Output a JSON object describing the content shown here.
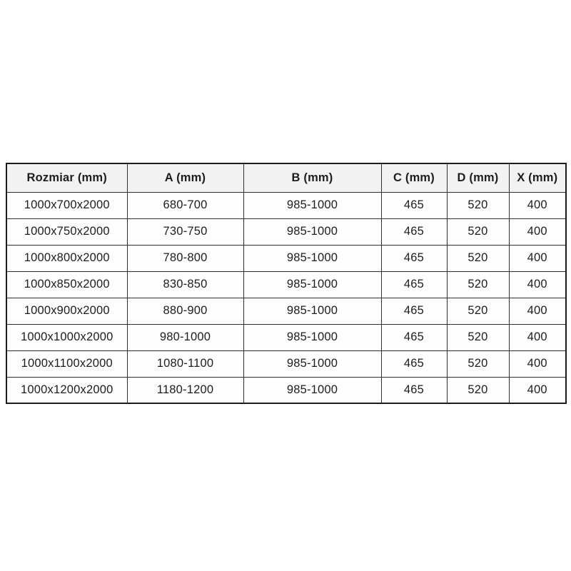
{
  "table": {
    "headers": [
      "Rozmiar (mm)",
      "A (mm)",
      "B (mm)",
      "C (mm)",
      "D (mm)",
      "X (mm)"
    ],
    "rows": [
      [
        "1000x700x2000",
        "680-700",
        "985-1000",
        "465",
        "520",
        "400"
      ],
      [
        "1000x750x2000",
        "730-750",
        "985-1000",
        "465",
        "520",
        "400"
      ],
      [
        "1000x800x2000",
        "780-800",
        "985-1000",
        "465",
        "520",
        "400"
      ],
      [
        "1000x850x2000",
        "830-850",
        "985-1000",
        "465",
        "520",
        "400"
      ],
      [
        "1000x900x2000",
        "880-900",
        "985-1000",
        "465",
        "520",
        "400"
      ],
      [
        "1000x1000x2000",
        "980-1000",
        "985-1000",
        "465",
        "520",
        "400"
      ],
      [
        "1000x1100x2000",
        "1080-1100",
        "985-1000",
        "465",
        "520",
        "400"
      ],
      [
        "1000x1200x2000",
        "1180-1200",
        "985-1000",
        "465",
        "520",
        "400"
      ]
    ],
    "colors": {
      "header_bg": "#f2f2f2",
      "row_bg": "#fdfdfd",
      "border": "#2e2e2e",
      "text": "#1d1d1d"
    }
  }
}
